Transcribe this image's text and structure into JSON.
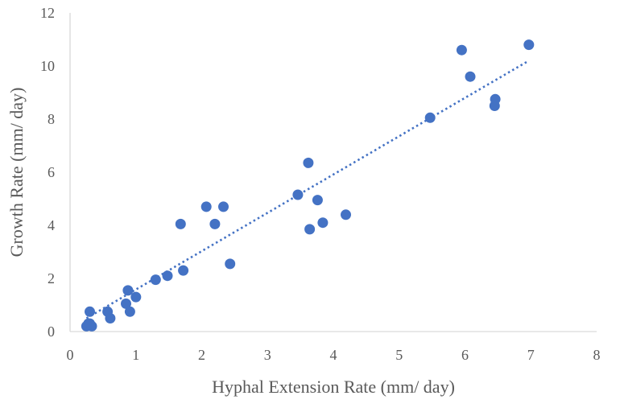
{
  "chart_data": {
    "type": "scatter",
    "title": "",
    "xlabel": "Hyphal Extension Rate (mm/ day)",
    "ylabel": "Growth Rate (mm/ day)",
    "xlim": [
      0,
      8
    ],
    "ylim": [
      0,
      12
    ],
    "xticks": [
      "0",
      "1",
      "2",
      "3",
      "4",
      "5",
      "6",
      "7",
      "8"
    ],
    "yticks": [
      "0",
      "2",
      "4",
      "6",
      "8",
      "10",
      "12"
    ],
    "grid": false,
    "legend": "none",
    "color": "#4472c4",
    "trendline": {
      "type": "linear",
      "style": "dotted",
      "x": [
        0.25,
        6.97
      ],
      "y": [
        0.5,
        10.2
      ]
    },
    "series": [
      {
        "x": [
          0.25,
          0.28,
          0.3,
          0.33,
          0.27,
          0.3,
          0.57,
          0.61,
          0.85,
          0.88,
          0.91,
          1.0,
          1.3,
          1.48,
          1.68,
          1.72,
          2.07,
          2.2,
          2.33,
          2.43,
          3.46,
          3.62,
          3.64,
          3.76,
          3.84,
          4.19,
          5.47,
          5.95,
          6.08,
          6.45,
          6.46,
          6.97
        ],
        "y": [
          0.2,
          0.3,
          0.75,
          0.2,
          0.25,
          0.3,
          0.75,
          0.5,
          1.05,
          1.55,
          0.75,
          1.3,
          1.95,
          2.1,
          4.05,
          2.3,
          4.7,
          4.05,
          4.7,
          2.55,
          5.15,
          6.35,
          3.85,
          4.95,
          4.1,
          4.4,
          8.05,
          10.6,
          9.6,
          8.5,
          8.75,
          10.8
        ]
      }
    ]
  }
}
